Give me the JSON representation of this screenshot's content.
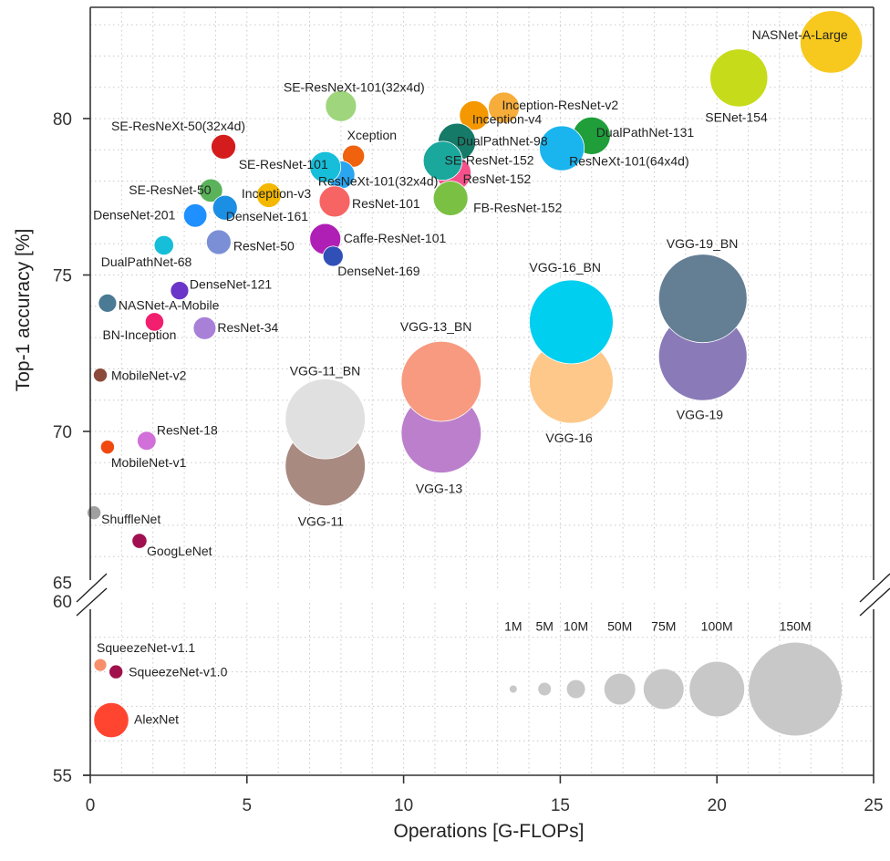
{
  "chart_data": {
    "type": "scatter",
    "title": "",
    "xlabel": "Operations [G-FLOPs]",
    "ylabel": "Top-1 accuracy [%]",
    "xlim": [
      0,
      25
    ],
    "ylim_upper": [
      65,
      83.6
    ],
    "ylim_lower": [
      55,
      60
    ],
    "xticks": [
      "0",
      "5",
      "10",
      "15",
      "20",
      "25"
    ],
    "yticks_upper": [
      "65",
      "70",
      "75",
      "80"
    ],
    "yticks_lower": [
      "55",
      "60"
    ],
    "grid": true,
    "axis_break": "between 60 and 65",
    "bubble_size": "parameters",
    "legend": {
      "placement": "bottom-right",
      "items": [
        {
          "label": "1M",
          "params": 1,
          "x": 13.5
        },
        {
          "label": "5M",
          "params": 5,
          "x": 14.5
        },
        {
          "label": "10M",
          "params": 10,
          "x": 15.5
        },
        {
          "label": "50M",
          "params": 50,
          "x": 16.9
        },
        {
          "label": "75M",
          "params": 75,
          "x": 18.3
        },
        {
          "label": "100M",
          "params": 100,
          "x": 20.0
        },
        {
          "label": "150M",
          "params": 150,
          "x": 22.5
        }
      ],
      "y": 57.5,
      "color": "#c8c8c8"
    },
    "points": [
      {
        "name": "NASNet-A-Large",
        "x": 23.65,
        "y": 82.45,
        "params": 110,
        "color": "#f7c81e"
      },
      {
        "name": "SENet-154",
        "x": 20.7,
        "y": 81.3,
        "params": 104,
        "color": "#c6db1a"
      },
      {
        "name": "SE-ResNeXt-101(32x4d)",
        "x": 8.0,
        "y": 80.4,
        "params": 50,
        "color": "#9fd57c"
      },
      {
        "name": "Inception-ResNet-v2",
        "x": 13.2,
        "y": 80.35,
        "params": 50,
        "color": "#f7ad3a"
      },
      {
        "name": "Inception-v4",
        "x": 12.25,
        "y": 80.1,
        "params": 45,
        "color": "#f59800"
      },
      {
        "name": "DualPathNet-131",
        "x": 16.0,
        "y": 79.45,
        "params": 68,
        "color": "#1f9e3a"
      },
      {
        "name": "DualPathNet-98",
        "x": 11.7,
        "y": 79.25,
        "params": 68,
        "color": "#157a68"
      },
      {
        "name": "SE-ResNeXt-50(32x4d)",
        "x": 4.25,
        "y": 79.1,
        "params": 30,
        "color": "#d41c1c"
      },
      {
        "name": "Xception",
        "x": 8.4,
        "y": 78.8,
        "params": 22,
        "color": "#f0620e"
      },
      {
        "name": "ResNet-152",
        "x": 11.6,
        "y": 78.25,
        "params": 60,
        "color": "#f4508a"
      },
      {
        "name": "SE-ResNet-152",
        "x": 11.25,
        "y": 78.65,
        "params": 72,
        "color": "#1aa79c"
      },
      {
        "name": "ResNeXt-101(64x4d)",
        "x": 15.05,
        "y": 79.05,
        "params": 83,
        "color": "#1ab4ee"
      },
      {
        "name": "ResNeXt-101(32x4d)",
        "x": 8.0,
        "y": 78.2,
        "params": 40,
        "color": "#2aa5f0"
      },
      {
        "name": "SE-ResNet-101",
        "x": 7.5,
        "y": 78.45,
        "params": 50,
        "color": "#17bed9"
      },
      {
        "name": "FB-ResNet-152",
        "x": 11.5,
        "y": 77.45,
        "params": 60,
        "color": "#7ac143"
      },
      {
        "name": "Inception-v3",
        "x": 5.7,
        "y": 77.55,
        "params": 30,
        "color": "#f5b800"
      },
      {
        "name": "SE-ResNet-50",
        "x": 3.85,
        "y": 77.7,
        "params": 26,
        "color": "#5ab35a"
      },
      {
        "name": "DenseNet-161",
        "x": 4.3,
        "y": 77.15,
        "params": 30,
        "color": "#1a8fe3"
      },
      {
        "name": "DenseNet-201",
        "x": 3.35,
        "y": 76.9,
        "params": 26,
        "color": "#1e90ff"
      },
      {
        "name": "ResNet-101",
        "x": 7.8,
        "y": 77.35,
        "params": 50,
        "color": "#f76464"
      },
      {
        "name": "Caffe-ResNet-101",
        "x": 7.5,
        "y": 76.15,
        "params": 50,
        "color": "#b01fb5"
      },
      {
        "name": "DenseNet-169",
        "x": 7.75,
        "y": 75.6,
        "params": 16,
        "color": "#3050b8"
      },
      {
        "name": "DualPathNet-68",
        "x": 2.35,
        "y": 75.95,
        "params": 14,
        "color": "#17bed9"
      },
      {
        "name": "ResNet-50",
        "x": 4.1,
        "y": 76.05,
        "params": 30,
        "color": "#7b8fd6"
      },
      {
        "name": "DenseNet-121",
        "x": 2.85,
        "y": 74.5,
        "params": 10,
        "color": "#6a35c8"
      },
      {
        "name": "NASNet-A-Mobile",
        "x": 0.55,
        "y": 74.1,
        "params": 10,
        "color": "#4a7a94"
      },
      {
        "name": "BN-Inception",
        "x": 2.05,
        "y": 73.5,
        "params": 11,
        "color": "#f21f6e"
      },
      {
        "name": "ResNet-34",
        "x": 3.65,
        "y": 73.3,
        "params": 24,
        "color": "#a880d8"
      },
      {
        "name": "MobileNet-v2",
        "x": 0.32,
        "y": 71.8,
        "params": 6,
        "color": "#8b4a3a"
      },
      {
        "name": "ResNet-18",
        "x": 1.8,
        "y": 69.7,
        "params": 12,
        "color": "#d070d8"
      },
      {
        "name": "MobileNet-v1",
        "x": 0.55,
        "y": 69.5,
        "params": 6,
        "color": "#f04a10"
      },
      {
        "name": "ShuffleNet",
        "x": 0.12,
        "y": 67.4,
        "params": 6,
        "color": "#a0a0a0"
      },
      {
        "name": "GoogLeNet",
        "x": 1.57,
        "y": 66.5,
        "params": 7,
        "color": "#a01050"
      },
      {
        "name": "VGG-11",
        "x": 7.5,
        "y": 68.9,
        "params": 133,
        "color": "#a88a80"
      },
      {
        "name": "VGG-11_BN",
        "x": 7.5,
        "y": 70.4,
        "params": 133,
        "color": "#e0e0e0"
      },
      {
        "name": "VGG-13",
        "x": 11.2,
        "y": 69.95,
        "params": 133,
        "color": "#bb7fcc"
      },
      {
        "name": "VGG-13_BN",
        "x": 11.2,
        "y": 71.6,
        "params": 133,
        "color": "#f79a80"
      },
      {
        "name": "VGG-16",
        "x": 15.35,
        "y": 71.6,
        "params": 138,
        "color": "#fdc88a"
      },
      {
        "name": "VGG-16_BN",
        "x": 15.35,
        "y": 73.5,
        "params": 138,
        "color": "#00cfef"
      },
      {
        "name": "VGG-19",
        "x": 19.55,
        "y": 72.4,
        "params": 144,
        "color": "#8a7ab8"
      },
      {
        "name": "VGG-19_BN",
        "x": 19.55,
        "y": 74.25,
        "params": 144,
        "color": "#647e94"
      },
      {
        "name": "SqueezeNet-v1.1",
        "x": 0.32,
        "y": 58.2,
        "params": 5,
        "color": "#f7906a"
      },
      {
        "name": "SqueezeNet-v1.0",
        "x": 0.82,
        "y": 58.0,
        "params": 6,
        "color": "#a0104a"
      },
      {
        "name": "AlexNet",
        "x": 0.67,
        "y": 56.6,
        "params": 61,
        "color": "#ff4530"
      }
    ]
  }
}
